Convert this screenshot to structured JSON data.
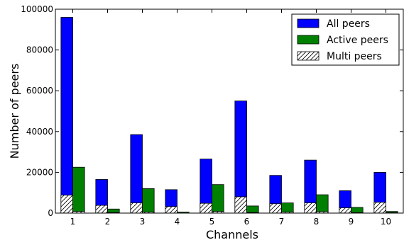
{
  "chart_data": {
    "type": "bar",
    "xlabel": "Channels",
    "ylabel": "Number of peers",
    "categories": [
      "1",
      "2",
      "3",
      "4",
      "5",
      "6",
      "7",
      "8",
      "9",
      "10"
    ],
    "ylim": [
      0,
      100000
    ],
    "yticks": [
      0,
      20000,
      40000,
      60000,
      80000,
      100000
    ],
    "ytick_labels": [
      "0",
      "20000",
      "40000",
      "60000",
      "80000",
      "100000"
    ],
    "legend_position": "top-right",
    "series": [
      {
        "name": "All peers",
        "color": "#0000ff",
        "group": "left",
        "values": [
          96000,
          16500,
          38500,
          11500,
          26500,
          55000,
          18500,
          26000,
          11000,
          20000
        ]
      },
      {
        "name": "Active peers",
        "color": "#008000",
        "group": "right",
        "values": [
          22500,
          2000,
          12000,
          500,
          14000,
          3500,
          5000,
          9000,
          2800,
          800
        ]
      },
      {
        "name": "Multi peers",
        "color": "#ffffff",
        "pattern": "hatch",
        "group": "left+right",
        "values_left": [
          8800,
          3800,
          5000,
          3200,
          4800,
          8000,
          4600,
          5000,
          2600,
          5300
        ],
        "values_right": [
          800,
          300,
          500,
          100,
          800,
          300,
          500,
          700,
          200,
          200
        ]
      }
    ]
  }
}
